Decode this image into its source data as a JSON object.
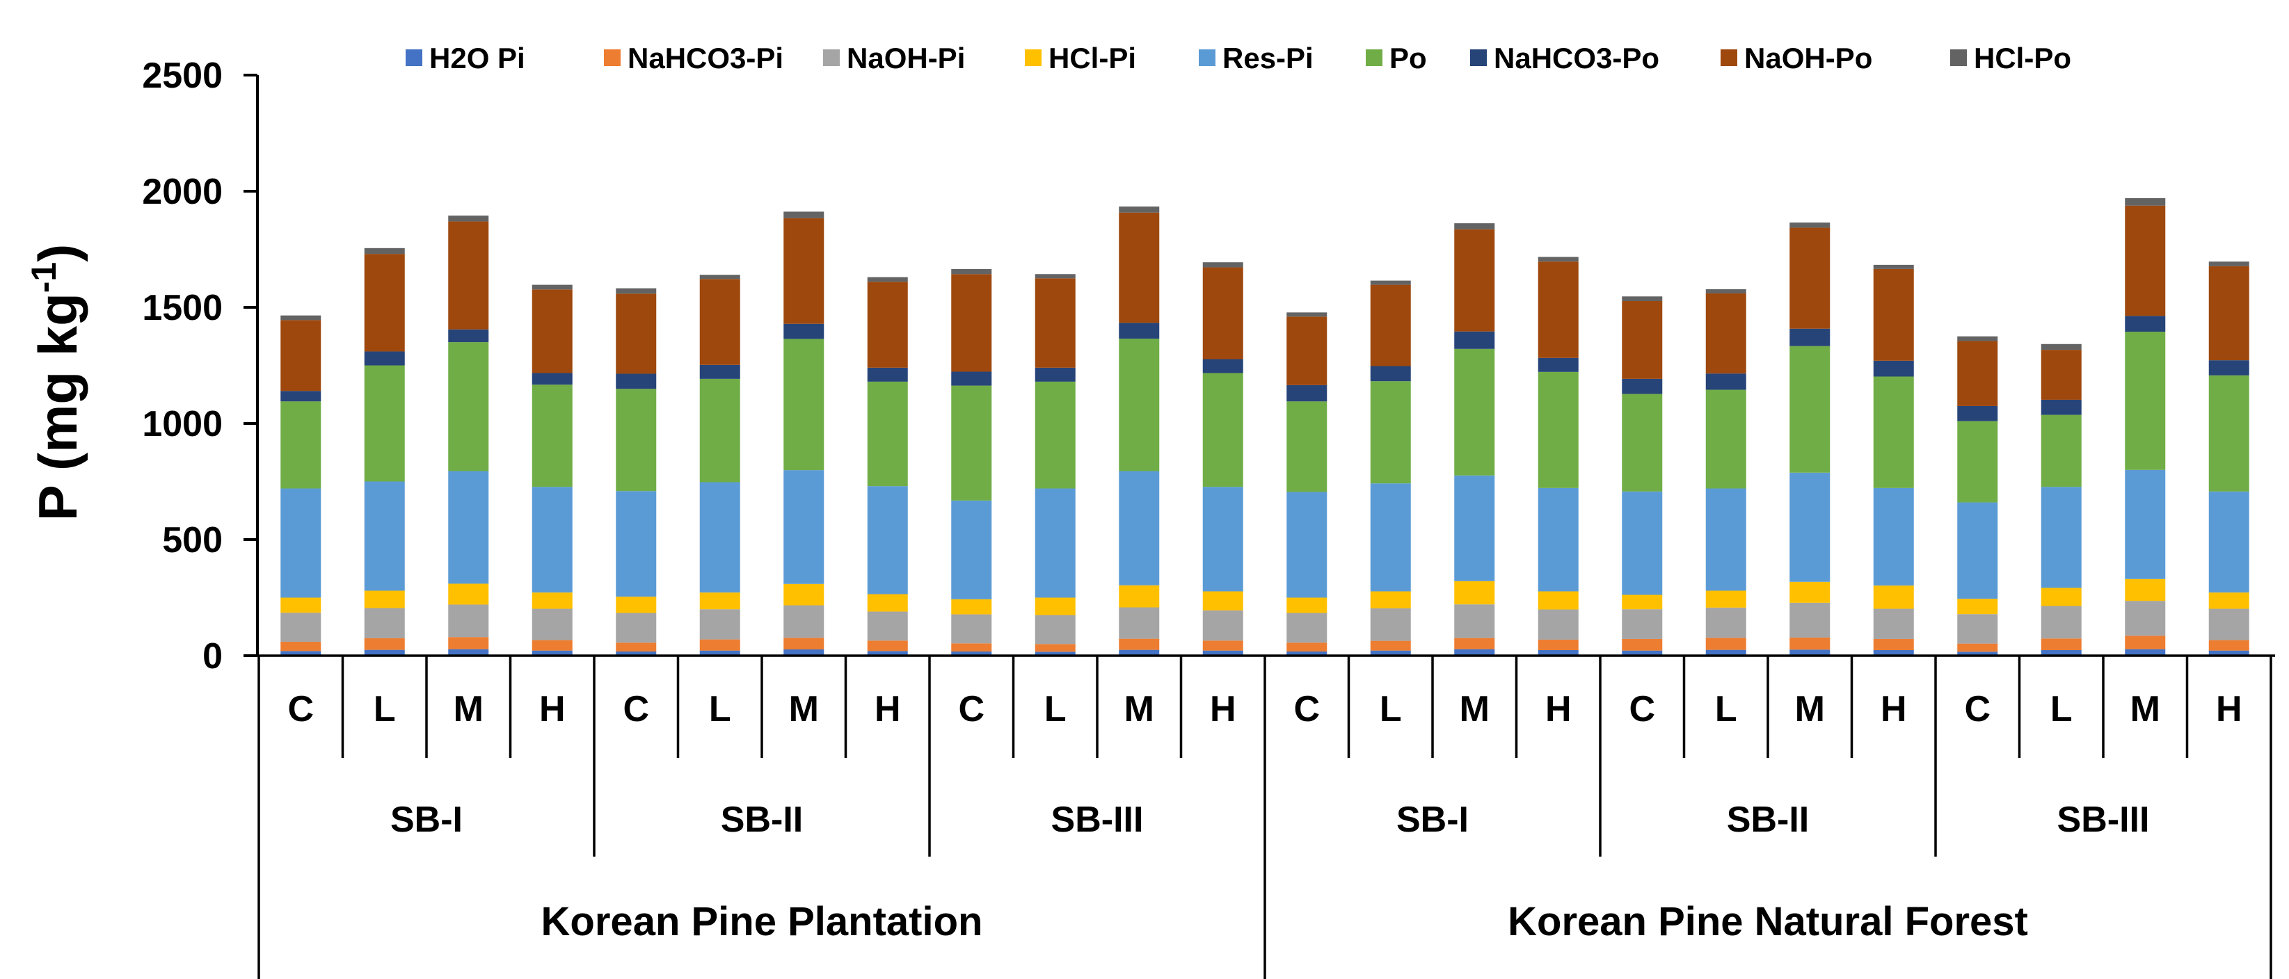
{
  "chart_data": {
    "type": "bar",
    "stacked": true,
    "title": "",
    "xlabel": "",
    "ylabel": "P (mg kg",
    "ylabel_sup": "-1",
    "ylabel_close": ")",
    "ylim": [
      0,
      2500
    ],
    "yticks": [
      "0",
      "500",
      "1000",
      "1500",
      "2000",
      "2500"
    ],
    "ytick_values": [
      0,
      500,
      1000,
      1500,
      2000,
      2500
    ],
    "grid": false,
    "legend_position": "top",
    "categories": [
      "C",
      "L",
      "M",
      "H",
      "C",
      "L",
      "M",
      "H",
      "C",
      "L",
      "M",
      "H",
      "C",
      "L",
      "M",
      "H",
      "C",
      "L",
      "M",
      "H",
      "C",
      "L",
      "M",
      "H"
    ],
    "groups": [
      {
        "label": "SB-I",
        "span": 4
      },
      {
        "label": "SB-II",
        "span": 4
      },
      {
        "label": "SB-III",
        "span": 4
      },
      {
        "label": "SB-I",
        "span": 4
      },
      {
        "label": "SB-II",
        "span": 4
      },
      {
        "label": "SB-III",
        "span": 4
      }
    ],
    "forests": [
      {
        "label": "Korean Pine Plantation",
        "span": 12
      },
      {
        "label": "Korean Pine Natural Forest",
        "span": 12
      }
    ],
    "series": [
      {
        "name": "H2O Pi",
        "color": "#4472C4",
        "values": [
          20,
          25,
          28,
          22,
          18,
          22,
          27,
          20,
          18,
          17,
          25,
          22,
          18,
          22,
          28,
          24,
          22,
          25,
          26,
          24,
          17,
          24,
          28,
          22
        ]
      },
      {
        "name": "NaHCO3-Pi",
        "color": "#ED7D31",
        "values": [
          40,
          50,
          52,
          45,
          38,
          48,
          50,
          45,
          35,
          33,
          48,
          43,
          38,
          42,
          48,
          45,
          50,
          52,
          52,
          48,
          35,
          50,
          58,
          45
        ]
      },
      {
        "name": "NaOH-Pi",
        "color": "#A5A5A5",
        "values": [
          125,
          130,
          140,
          135,
          128,
          130,
          140,
          125,
          125,
          125,
          135,
          130,
          128,
          140,
          145,
          130,
          128,
          130,
          150,
          130,
          127,
          140,
          150,
          135
        ]
      },
      {
        "name": "HCl-Pi",
        "color": "#FFC000",
        "values": [
          65,
          75,
          90,
          70,
          70,
          72,
          92,
          75,
          65,
          75,
          95,
          82,
          66,
          73,
          100,
          78,
          62,
          73,
          90,
          100,
          66,
          78,
          94,
          70
        ]
      },
      {
        "name": "Res-Pi",
        "color": "#5B9BD5",
        "values": [
          470,
          470,
          485,
          455,
          455,
          475,
          490,
          465,
          425,
          470,
          492,
          450,
          455,
          465,
          455,
          445,
          445,
          440,
          470,
          420,
          415,
          435,
          470,
          435
        ]
      },
      {
        "name": "Po",
        "color": "#70AD47",
        "values": [
          375,
          500,
          555,
          440,
          440,
          445,
          565,
          450,
          495,
          460,
          570,
          490,
          390,
          440,
          545,
          500,
          420,
          425,
          545,
          480,
          350,
          310,
          595,
          500
        ]
      },
      {
        "name": "NaHCO3-Po",
        "color": "#264478",
        "values": [
          45,
          60,
          55,
          50,
          65,
          60,
          65,
          60,
          60,
          60,
          68,
          60,
          70,
          65,
          75,
          60,
          65,
          70,
          75,
          68,
          65,
          65,
          68,
          65
        ]
      },
      {
        "name": "NaOH-Po",
        "color": "#9E480E",
        "values": [
          305,
          420,
          465,
          360,
          345,
          370,
          455,
          370,
          420,
          385,
          475,
          395,
          295,
          350,
          440,
          415,
          335,
          345,
          435,
          395,
          280,
          215,
          475,
          405
        ]
      },
      {
        "name": "HCl-Po",
        "color": "#636363",
        "values": [
          20,
          25,
          25,
          20,
          23,
          18,
          28,
          20,
          22,
          18,
          26,
          22,
          18,
          18,
          26,
          20,
          20,
          18,
          22,
          18,
          20,
          25,
          32,
          20
        ]
      }
    ]
  }
}
